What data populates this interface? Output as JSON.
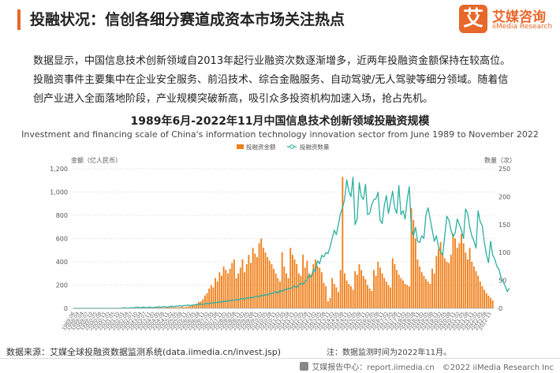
{
  "header": {
    "title": "投融状况：信创各细分赛道成资本市场关注热点"
  },
  "logo": {
    "mark": "艾",
    "cn": "艾媒咨询",
    "en": "iiMedia Research"
  },
  "intro": {
    "line1": "数据显示，中国信息技术创新领域自2013年起行业融资次数逐渐增多，近两年投融资金额保持在较高位。",
    "line2": "投融资事件主要集中在企业安全服务、前沿技术、综合金融服务、自动驾驶/无人驾驶等细分领域。随着信",
    "line3": "创产业进入全面落地阶段，产业规模突破新高，吸引众多投资机构加速入场，抢占先机。"
  },
  "chart_data": {
    "type": "bar+line",
    "title": "1989年6月-2022年11月中国信息技术创新领域投融资规模",
    "subtitle": "Investment and financing scale of China's information technology innovation sector from June 1989 to November 2022",
    "ylabel_left": "金额（亿人民币）",
    "ylabel_right": "数量（次）",
    "ylim_left": [
      0,
      1200
    ],
    "ylim_right": [
      0,
      250
    ],
    "yticks_left": [
      "0",
      "200",
      "400",
      "600",
      "800",
      "1,000",
      "1,200"
    ],
    "yticks_right": [
      "0",
      "50",
      "100",
      "150",
      "200",
      "250"
    ],
    "legend_position": "top-center",
    "x_tick_labels": [
      "1989-06",
      "1998-04",
      "1999-04",
      "1999-07",
      "1999-10",
      "2000-05",
      "2000-08",
      "2000-11",
      "2001-02",
      "2001-05",
      "2001-10",
      "2002-01",
      "2002-04",
      "2002-07",
      "2002-10",
      "2003-04",
      "2003-07",
      "2003-11",
      "2004-02",
      "2004-05",
      "2004-08",
      "2004-11",
      "2005-02",
      "2005-05",
      "2005-08",
      "2005-11",
      "2006-02",
      "2006-05",
      "2006-08",
      "2006-11",
      "2007-02",
      "2007-05",
      "2007-08",
      "2007-11",
      "2008-02",
      "2008-05",
      "2008-08",
      "2008-11",
      "2009-02",
      "2009-05",
      "2009-08",
      "2009-11",
      "2010-02",
      "2010-05",
      "2010-08",
      "2010-11",
      "2011-02",
      "2011-05",
      "2011-08",
      "2011-11",
      "2012-02",
      "2012-05",
      "2012-08",
      "2012-11",
      "2013-02",
      "2013-05",
      "2013-08",
      "2013-11",
      "2014-02",
      "2014-05",
      "2014-08",
      "2014-11",
      "2015-02",
      "2015-05",
      "2015-08",
      "2015-11",
      "2016-02",
      "2016-05",
      "2016-08",
      "2016-11",
      "2017-02",
      "2017-05",
      "2017-08",
      "2017-11",
      "2018-02",
      "2018-05",
      "2018-08",
      "2018-11",
      "2019-02",
      "2019-05",
      "2019-08",
      "2019-11",
      "2020-02",
      "2020-05",
      "2020-08",
      "2020-11",
      "2021-02",
      "2021-05",
      "2021-08",
      "2021-11",
      "2022-02",
      "2022-05",
      "2022-08",
      "2022-11"
    ],
    "series": [
      {
        "name": "投融资金额",
        "type": "bar",
        "color": "#f07f1a",
        "axis": "left",
        "values": [
          0,
          0,
          0,
          0,
          0,
          0,
          0,
          0,
          0,
          0,
          0,
          0,
          0,
          0,
          0,
          0,
          0,
          0,
          0,
          0,
          0,
          0,
          0,
          0,
          2,
          0,
          0,
          2,
          0,
          0,
          3,
          5,
          4,
          6,
          5,
          3,
          4,
          2,
          3,
          5,
          6,
          8,
          7,
          6,
          8,
          9,
          10,
          12,
          8,
          10,
          9,
          12,
          15,
          10,
          12,
          18,
          22,
          30,
          25,
          40,
          55,
          60,
          80,
          110,
          130,
          170,
          200,
          180,
          260,
          230,
          310,
          280,
          360,
          330,
          300,
          340,
          390,
          420,
          260,
          300,
          350,
          420,
          310,
          380,
          460,
          390,
          520,
          470,
          440,
          560,
          600,
          520,
          480,
          440,
          410,
          380,
          340,
          300,
          260,
          230,
          480,
          360,
          300,
          260,
          520,
          460,
          420,
          380,
          300,
          280,
          460,
          350,
          410,
          300,
          290,
          380,
          420,
          360,
          350,
          310,
          220,
          190,
          60,
          90,
          260,
          210,
          180,
          140,
          330,
          1130,
          300,
          240,
          210,
          190,
          160,
          320,
          290,
          380,
          330,
          280,
          250,
          200,
          170,
          150,
          330,
          280,
          400,
          350,
          300,
          260,
          230,
          200,
          180,
          430,
          380,
          330,
          290,
          260,
          240,
          210,
          200,
          190,
          860,
          760,
          600,
          420,
          360,
          310,
          280,
          250,
          230,
          210,
          340,
          300,
          450,
          510,
          570,
          470,
          430,
          400,
          390,
          460,
          640,
          600,
          520,
          560,
          640,
          560,
          480,
          420,
          520,
          400,
          360,
          320,
          280,
          230,
          190,
          160,
          130,
          110,
          90,
          70
        ]
      },
      {
        "name": "投融资数量",
        "type": "line",
        "color": "#2bb0a0",
        "axis": "right",
        "values": [
          0,
          0,
          0,
          0,
          0,
          0,
          0,
          0,
          0,
          0,
          0,
          0,
          0,
          0,
          0,
          0,
          0,
          0,
          0,
          0,
          0,
          0,
          0,
          0,
          1,
          1,
          0,
          1,
          1,
          1,
          2,
          2,
          1,
          2,
          2,
          1,
          2,
          2,
          1,
          2,
          2,
          3,
          2,
          3,
          3,
          2,
          3,
          4,
          3,
          4,
          4,
          5,
          4,
          5,
          5,
          6,
          5,
          6,
          6,
          7,
          7,
          8,
          7,
          8,
          9,
          8,
          10,
          9,
          11,
          10,
          12,
          11,
          13,
          12,
          14,
          13,
          15,
          14,
          16,
          15,
          17,
          18,
          16,
          19,
          18,
          20,
          19,
          21,
          22,
          20,
          24,
          22,
          25,
          23,
          27,
          26,
          28,
          30,
          27,
          32,
          30,
          34,
          33,
          36,
          35,
          38,
          40,
          37,
          42,
          45,
          43,
          48,
          52,
          60,
          55,
          70,
          66,
          85,
          80,
          95,
          92,
          100,
          98,
          110,
          125,
          140,
          132,
          150,
          170,
          180,
          196,
          230,
          210,
          200,
          235,
          150,
          160,
          225,
          200,
          195,
          222,
          168,
          170,
          186,
          195,
          196,
          208,
          158,
          152,
          184,
          202,
          170,
          190,
          210,
          180,
          170,
          220,
          168,
          175,
          160,
          195,
          218,
          140,
          130,
          145,
          120,
          118,
          130,
          125,
          168,
          180,
          160,
          140,
          120,
          130,
          110,
          102,
          95,
          130,
          165,
          158,
          140,
          128,
          135,
          160,
          150,
          140,
          125,
          178,
          170,
          145,
          130,
          120,
          108,
          175,
          155,
          148,
          118,
          96,
          82,
          120,
          95,
          88,
          75,
          70,
          55,
          48,
          40,
          30,
          36
        ]
      }
    ]
  },
  "footer": {
    "source": "数据来源：艾媒全球投融资数据监测系统(data.iimedia.cn/invest.jsp)",
    "note": "注：数据监测时间为2022年11月。",
    "report_center": "艾媒报告中心：report.iimedia.cn",
    "copyright": "©2022 iiMedia Research Inc"
  }
}
